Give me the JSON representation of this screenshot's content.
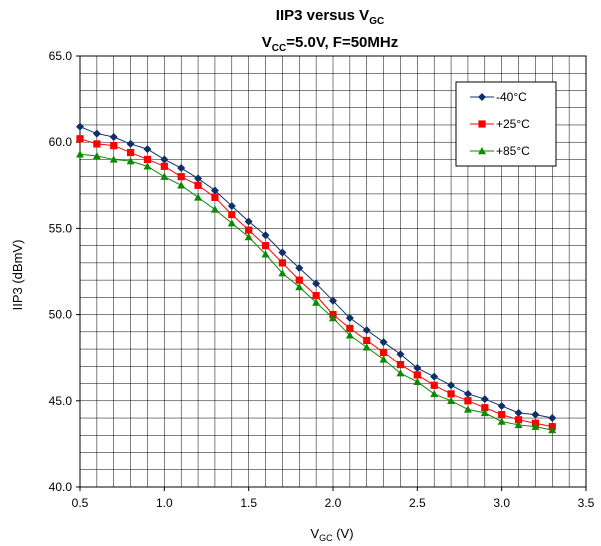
{
  "chart_data": {
    "type": "line",
    "title": {
      "line1_main": "IIP3 versus V",
      "line1_sub": "GC",
      "line2_main": "V",
      "line2_sub": "CC",
      "line2_rest": "=5.0V, F=50MHz"
    },
    "xlabel": {
      "main": "V",
      "sub": "GC",
      "rest": " (V)"
    },
    "ylabel": "IIP3 (dBmV)",
    "xlim": [
      0.5,
      3.5
    ],
    "ylim": [
      40.0,
      65.0
    ],
    "x_ticks": [
      "0.5",
      "1.0",
      "1.5",
      "2.0",
      "2.5",
      "3.0",
      "3.5"
    ],
    "y_ticks": [
      "40.0",
      "45.0",
      "50.0",
      "55.0",
      "60.0",
      "65.0"
    ],
    "grid": true,
    "legend_position": "top-right",
    "x": [
      0.5,
      0.6,
      0.7,
      0.8,
      0.9,
      1.0,
      1.1,
      1.2,
      1.3,
      1.4,
      1.5,
      1.6,
      1.7,
      1.8,
      1.9,
      2.0,
      2.1,
      2.2,
      2.3,
      2.4,
      2.5,
      2.6,
      2.7,
      2.8,
      2.9,
      3.0,
      3.1,
      3.2,
      3.3
    ],
    "series": [
      {
        "name": "-40°C",
        "color": "#0f2f6b",
        "marker": "diamond",
        "values": [
          60.9,
          60.5,
          60.3,
          59.9,
          59.6,
          59.0,
          58.5,
          57.9,
          57.2,
          56.3,
          55.4,
          54.6,
          53.6,
          52.7,
          51.8,
          50.8,
          49.8,
          49.1,
          48.4,
          47.7,
          46.9,
          46.4,
          45.9,
          45.4,
          45.1,
          44.7,
          44.3,
          44.2,
          44.0
        ]
      },
      {
        "name": "+25°C",
        "color": "#ff0000",
        "marker": "square",
        "values": [
          60.2,
          59.9,
          59.8,
          59.4,
          59.0,
          58.6,
          58.0,
          57.5,
          56.8,
          55.8,
          54.9,
          54.0,
          53.0,
          52.0,
          51.1,
          50.0,
          49.2,
          48.5,
          47.8,
          47.1,
          46.5,
          45.9,
          45.4,
          45.0,
          44.6,
          44.2,
          43.9,
          43.7,
          43.5
        ]
      },
      {
        "name": "+85°C",
        "color": "#0a8a00",
        "marker": "triangle",
        "values": [
          59.3,
          59.2,
          59.0,
          58.9,
          58.6,
          58.0,
          57.5,
          56.8,
          56.1,
          55.3,
          54.5,
          53.5,
          52.4,
          51.6,
          50.7,
          49.8,
          48.8,
          48.1,
          47.4,
          46.6,
          46.1,
          45.4,
          45.0,
          44.5,
          44.3,
          43.8,
          43.6,
          43.5,
          43.3
        ]
      }
    ]
  }
}
